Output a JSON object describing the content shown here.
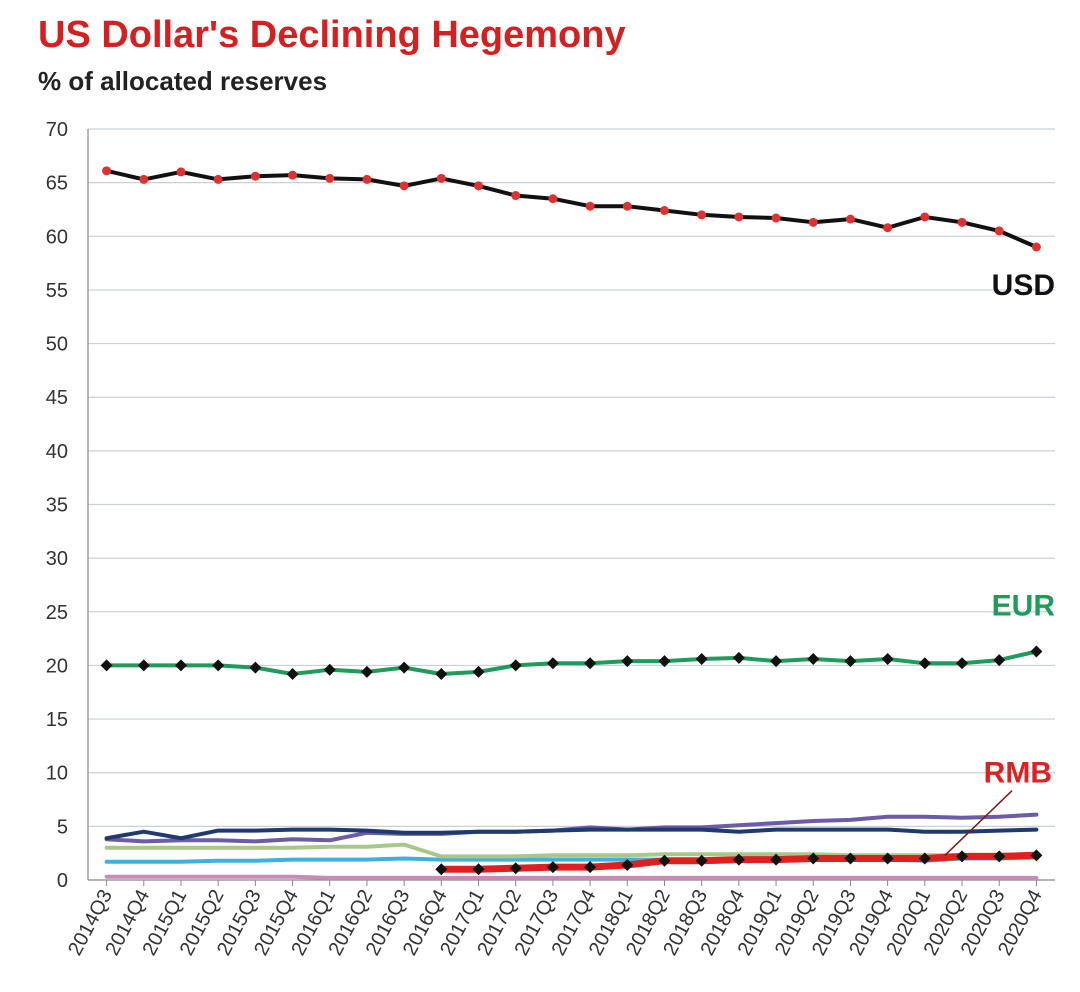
{
  "chart_data": {
    "type": "line",
    "title": "US Dollar's Declining Hegemony",
    "subtitle": "% of allocated reserves",
    "xlabel": "",
    "ylabel": "",
    "ylim": [
      0,
      70
    ],
    "yticks": [
      0,
      5,
      10,
      15,
      20,
      25,
      30,
      35,
      40,
      45,
      50,
      55,
      60,
      65,
      70
    ],
    "grid": true,
    "categories": [
      "2014Q3",
      "2014Q4",
      "2015Q1",
      "2015Q2",
      "2015Q3",
      "2015Q4",
      "2016Q1",
      "2016Q2",
      "2016Q3",
      "2016Q4",
      "2017Q1",
      "2017Q2",
      "2017Q3",
      "2017Q4",
      "2018Q1",
      "2018Q2",
      "2018Q3",
      "2018Q4",
      "2019Q1",
      "2019Q2",
      "2019Q3",
      "2019Q4",
      "2020Q1",
      "2020Q2",
      "2020Q3",
      "2020Q4"
    ],
    "series": [
      {
        "name": "USD",
        "color": "#111111",
        "marker": "dot",
        "marker_color": "#e03030",
        "width": 4,
        "values": [
          66.1,
          65.3,
          66.0,
          65.3,
          65.6,
          65.7,
          65.4,
          65.3,
          64.7,
          65.4,
          64.7,
          63.8,
          63.5,
          62.8,
          62.8,
          62.4,
          62.0,
          61.8,
          61.7,
          61.3,
          61.6,
          60.8,
          61.8,
          61.3,
          60.5,
          59.0
        ]
      },
      {
        "name": "EUR",
        "color": "#1e9c5a",
        "marker": "diamond",
        "marker_color": "#111111",
        "width": 4,
        "values": [
          20.0,
          20.0,
          20.0,
          20.0,
          19.8,
          19.2,
          19.6,
          19.4,
          19.8,
          19.2,
          19.4,
          20.0,
          20.2,
          20.2,
          20.4,
          20.4,
          20.6,
          20.7,
          20.4,
          20.6,
          20.4,
          20.6,
          20.2,
          20.2,
          20.5,
          21.3
        ]
      },
      {
        "name": "RMB",
        "color": "#e02020",
        "marker": "diamond",
        "marker_color": "#111111",
        "width": 7,
        "values": [
          null,
          null,
          null,
          null,
          null,
          null,
          null,
          null,
          null,
          1.0,
          1.0,
          1.1,
          1.2,
          1.2,
          1.4,
          1.8,
          1.8,
          1.9,
          1.9,
          2.0,
          2.0,
          2.0,
          2.0,
          2.2,
          2.2,
          2.3
        ]
      },
      {
        "name": "",
        "color": "#1f3a6e",
        "marker": "none",
        "width": 4,
        "values": [
          3.9,
          4.5,
          3.9,
          4.6,
          4.6,
          4.7,
          4.7,
          4.6,
          4.4,
          4.4,
          4.5,
          4.5,
          4.6,
          4.7,
          4.7,
          4.7,
          4.7,
          4.5,
          4.7,
          4.7,
          4.7,
          4.7,
          4.5,
          4.5,
          4.6,
          4.7
        ]
      },
      {
        "name": "",
        "color": "#6b5ba8",
        "marker": "none",
        "width": 4,
        "values": [
          3.8,
          3.6,
          3.7,
          3.7,
          3.6,
          3.8,
          3.7,
          4.4,
          4.3,
          4.3,
          4.5,
          4.5,
          4.6,
          4.9,
          4.7,
          4.9,
          4.9,
          5.1,
          5.3,
          5.5,
          5.6,
          5.9,
          5.9,
          5.8,
          5.9,
          6.1
        ]
      },
      {
        "name": "",
        "color": "#a8c88a",
        "marker": "none",
        "width": 4,
        "values": [
          3.0,
          3.0,
          3.0,
          3.0,
          3.0,
          3.0,
          3.1,
          3.1,
          3.3,
          2.2,
          2.2,
          2.2,
          2.3,
          2.3,
          2.3,
          2.4,
          2.4,
          2.4,
          2.4,
          2.4,
          2.3,
          2.3,
          2.3,
          2.3,
          2.3,
          2.3
        ]
      },
      {
        "name": "",
        "color": "#3fb0e0",
        "marker": "none",
        "width": 4,
        "values": [
          1.7,
          1.7,
          1.7,
          1.8,
          1.8,
          1.9,
          1.9,
          1.9,
          2.0,
          1.9,
          1.9,
          1.9,
          1.9,
          1.9,
          1.9,
          1.9,
          1.8,
          1.8,
          1.9,
          1.9,
          1.9,
          1.9,
          1.8,
          2.0,
          2.0,
          2.1
        ]
      },
      {
        "name": "",
        "color": "#c98ab5",
        "marker": "none",
        "width": 4,
        "values": [
          0.3,
          0.3,
          0.3,
          0.3,
          0.3,
          0.3,
          0.2,
          0.2,
          0.2,
          0.2,
          0.2,
          0.2,
          0.2,
          0.2,
          0.2,
          0.2,
          0.2,
          0.2,
          0.2,
          0.2,
          0.2,
          0.2,
          0.2,
          0.2,
          0.2,
          0.2
        ]
      }
    ],
    "annotations": [
      {
        "text": "USD",
        "color": "#111111"
      },
      {
        "text": "EUR",
        "color": "#1e9c5a"
      },
      {
        "text": "RMB",
        "color": "#e02020"
      }
    ]
  }
}
